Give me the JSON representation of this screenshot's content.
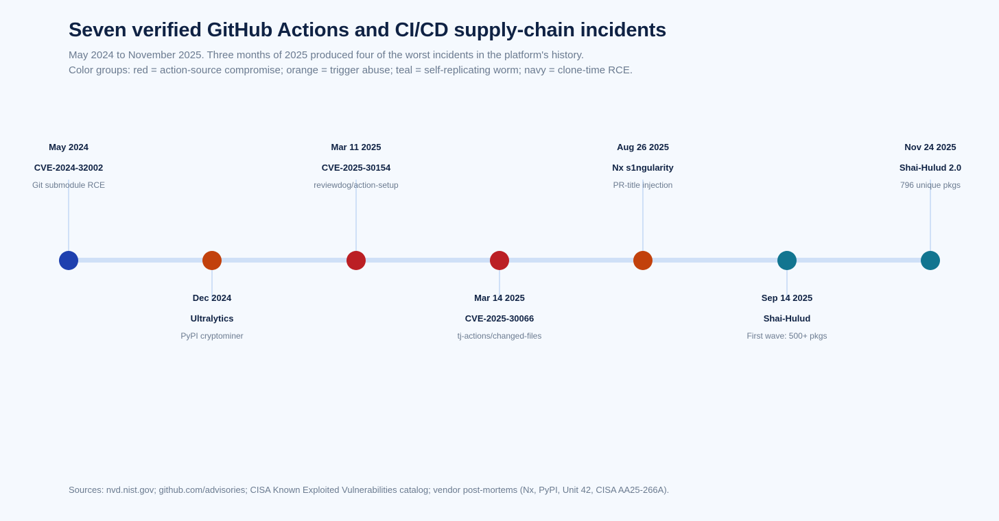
{
  "header": {
    "title": "Seven verified GitHub Actions and CI/CD supply-chain incidents",
    "subtitle_line1": "May 2024 to November 2025. Three months of 2025 produced four of the worst incidents in the platform's history.",
    "subtitle_line2": "Color groups: red = action-source compromise; orange = trigger abuse; teal = self-replicating worm; navy = clone-time RCE."
  },
  "colors": {
    "red": "#bb1f24",
    "orange": "#c2410c",
    "teal": "#127590",
    "navy": "#1e40af",
    "axis": "#cfe0f7",
    "background": "#f5f9fe"
  },
  "events": [
    {
      "date": "May 2024",
      "name": "CVE-2024-32002",
      "desc": "Git submodule RCE",
      "color": "navy",
      "position": "above"
    },
    {
      "date": "Dec 2024",
      "name": "Ultralytics",
      "desc": "PyPI cryptominer",
      "color": "orange",
      "position": "below"
    },
    {
      "date": "Mar 11 2025",
      "name": "CVE-2025-30154",
      "desc": "reviewdog/action-setup",
      "color": "red",
      "position": "above"
    },
    {
      "date": "Mar 14 2025",
      "name": "CVE-2025-30066",
      "desc": "tj-actions/changed-files",
      "color": "red",
      "position": "below"
    },
    {
      "date": "Aug 26 2025",
      "name": "Nx s1ngularity",
      "desc": "PR-title injection",
      "color": "orange",
      "position": "above"
    },
    {
      "date": "Sep 14 2025",
      "name": "Shai-Hulud",
      "desc": "First wave: 500+ pkgs",
      "color": "teal",
      "position": "below"
    },
    {
      "date": "Nov 24 2025",
      "name": "Shai-Hulud 2.0",
      "desc": "796 unique pkgs",
      "color": "teal",
      "position": "above"
    }
  ],
  "footer": {
    "sources": "Sources: nvd.nist.gov; github.com/advisories; CISA Known Exploited Vulnerabilities catalog; vendor post-mortems (Nx, PyPI, Unit 42, CISA AA25-266A)."
  }
}
